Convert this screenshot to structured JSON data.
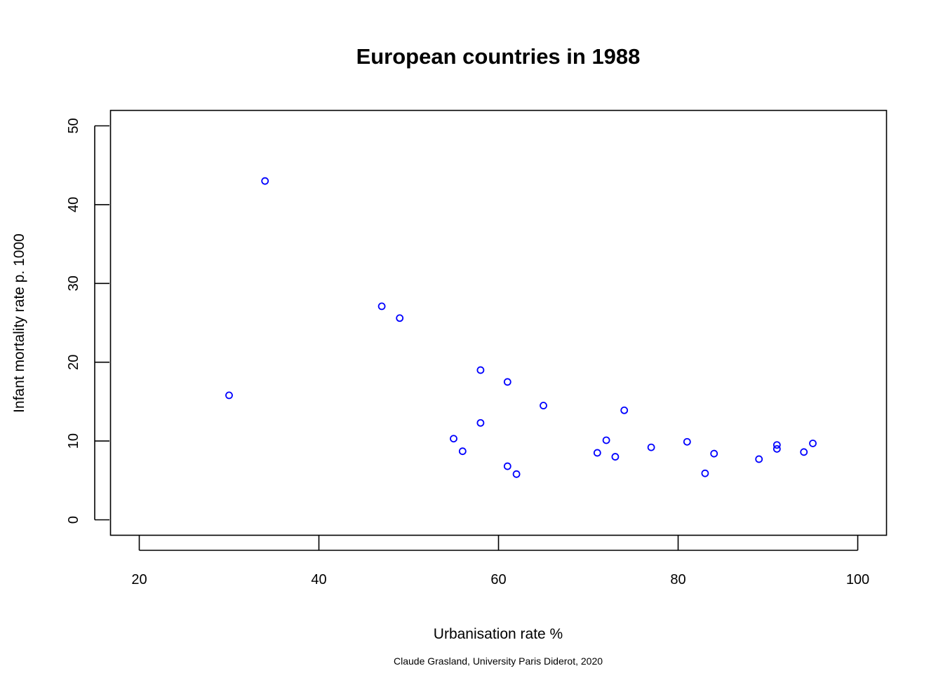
{
  "chart_data": {
    "type": "scatter",
    "title": "European countries in 1988",
    "xlabel": "Urbanisation rate %",
    "ylabel": "Infant mortality rate p. 1000",
    "caption": "Claude Grasland, University Paris Diderot, 2020",
    "xlim": [
      20,
      100
    ],
    "ylim": [
      0,
      50
    ],
    "x_ticks": [
      20,
      40,
      60,
      80,
      100
    ],
    "y_ticks": [
      0,
      10,
      20,
      30,
      40,
      50
    ],
    "grid": false,
    "legend": "none",
    "point_color": "#0000ff",
    "points": [
      {
        "x": 30,
        "y": 15.8
      },
      {
        "x": 34,
        "y": 43.0
      },
      {
        "x": 47,
        "y": 27.1
      },
      {
        "x": 49,
        "y": 25.6
      },
      {
        "x": 55,
        "y": 10.3
      },
      {
        "x": 56,
        "y": 8.7
      },
      {
        "x": 58,
        "y": 19.0
      },
      {
        "x": 58,
        "y": 12.3
      },
      {
        "x": 61,
        "y": 17.5
      },
      {
        "x": 61,
        "y": 6.8
      },
      {
        "x": 62,
        "y": 5.8
      },
      {
        "x": 65,
        "y": 14.5
      },
      {
        "x": 71,
        "y": 8.5
      },
      {
        "x": 72,
        "y": 10.1
      },
      {
        "x": 73,
        "y": 8.0
      },
      {
        "x": 74,
        "y": 13.9
      },
      {
        "x": 77,
        "y": 9.2
      },
      {
        "x": 81,
        "y": 9.9
      },
      {
        "x": 83,
        "y": 5.9
      },
      {
        "x": 84,
        "y": 8.4
      },
      {
        "x": 89,
        "y": 7.7
      },
      {
        "x": 91,
        "y": 9.5
      },
      {
        "x": 91,
        "y": 9.0
      },
      {
        "x": 94,
        "y": 8.6
      },
      {
        "x": 95,
        "y": 9.7
      }
    ]
  }
}
